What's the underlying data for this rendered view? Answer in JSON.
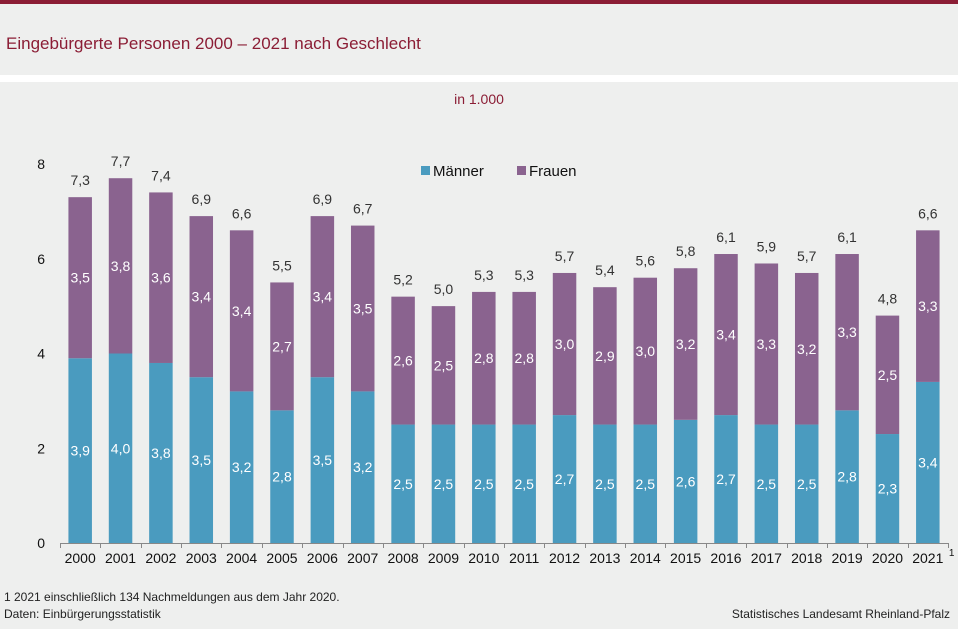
{
  "header": {
    "title": "Eingebürgerte Personen 2000 – 2021 nach Geschlecht"
  },
  "colors": {
    "brand": "#8b1d35",
    "maenner": "#4a9bbf",
    "frauen": "#8a638f"
  },
  "chart_data": {
    "type": "bar",
    "stacked": true,
    "title": "Eingebürgerte Personen 2000 – 2021 nach Geschlecht",
    "subtitle": "in 1.000",
    "xlabel": "",
    "ylabel": "",
    "ylim": [
      0,
      8
    ],
    "yticks": [
      "0",
      "2",
      "4",
      "6",
      "8"
    ],
    "grid": false,
    "legend_position": "top-center",
    "categories": [
      "2000",
      "2001",
      "2002",
      "2003",
      "2004",
      "2005",
      "2006",
      "2007",
      "2008",
      "2009",
      "2010",
      "2011",
      "2012",
      "2013",
      "2014",
      "2015",
      "2016",
      "2017",
      "2018",
      "2019",
      "2020",
      "2021"
    ],
    "category_footnote_marks": {
      "2021": "1"
    },
    "series": [
      {
        "name": "Männer",
        "values": [
          3.9,
          4.0,
          3.8,
          3.5,
          3.2,
          2.8,
          3.5,
          3.2,
          2.5,
          2.5,
          2.5,
          2.5,
          2.7,
          2.5,
          2.5,
          2.6,
          2.7,
          2.5,
          2.5,
          2.8,
          2.3,
          3.4
        ],
        "labels": [
          "3,9",
          "4,0",
          "3,8",
          "3,5",
          "3,2",
          "2,8",
          "3,5",
          "3,2",
          "2,5",
          "2,5",
          "2,5",
          "2,5",
          "2,7",
          "2,5",
          "2,5",
          "2,6",
          "2,7",
          "2,5",
          "2,5",
          "2,8",
          "2,3",
          "3,4"
        ]
      },
      {
        "name": "Frauen",
        "values": [
          3.5,
          3.8,
          3.6,
          3.4,
          3.4,
          2.7,
          3.4,
          3.5,
          2.6,
          2.5,
          2.8,
          2.8,
          3.0,
          2.9,
          3.0,
          3.2,
          3.4,
          3.3,
          3.2,
          3.3,
          2.5,
          3.3
        ],
        "labels": [
          "3,5",
          "3,8",
          "3,6",
          "3,4",
          "3,4",
          "2,7",
          "3,4",
          "3,5",
          "2,6",
          "2,5",
          "2,8",
          "2,8",
          "3,0",
          "2,9",
          "3,0",
          "3,2",
          "3,4",
          "3,3",
          "3,2",
          "3,3",
          "2,5",
          "3,3"
        ]
      }
    ],
    "totals": [
      7.3,
      7.7,
      7.4,
      6.9,
      6.6,
      5.5,
      6.9,
      6.7,
      5.2,
      5.0,
      5.3,
      5.3,
      5.7,
      5.4,
      5.6,
      5.8,
      6.1,
      5.9,
      5.7,
      6.1,
      4.8,
      6.6
    ],
    "total_labels": [
      "7,3",
      "7,7",
      "7,4",
      "6,9",
      "6,6",
      "5,5",
      "6,9",
      "6,7",
      "5,2",
      "5,0",
      "5,3",
      "5,3",
      "5,7",
      "5,4",
      "5,6",
      "5,8",
      "6,1",
      "5,9",
      "5,7",
      "6,1",
      "4,8",
      "6,6"
    ]
  },
  "footer": {
    "footnote": "1 2021 einschließlich 134 Nachmeldungen  aus dem Jahr 2020.",
    "source": "Daten: Einbürgerungsstatistik",
    "publisher": "Statistisches Landesamt Rheinland-Pfalz"
  }
}
